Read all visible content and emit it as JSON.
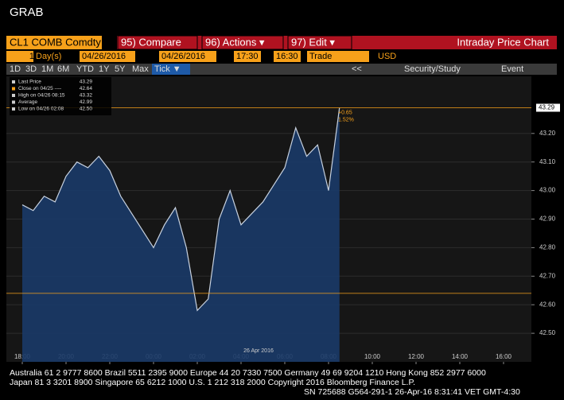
{
  "header": {
    "title": "GRAB"
  },
  "toolbar": {
    "security": "CL1 COMB Comdty",
    "buttons": [
      "95) Compare",
      "96) Actions ▾",
      "97) Edit ▾"
    ],
    "page_title": "Intraday Price Chart",
    "fields": [
      "1",
      "Day(s)",
      "04/26/2016",
      "04/26/2016",
      "17:30",
      "16:30",
      "Trade",
      "USD"
    ],
    "ranges": [
      "1D",
      "3D",
      "1M",
      "6M",
      "YTD",
      "1Y",
      "5Y",
      "Max",
      "Tick ▼"
    ],
    "right_items": [
      "<<",
      "Security/Study",
      "Event"
    ]
  },
  "chart_data": {
    "type": "area",
    "categories": [
      "18:00",
      null,
      null,
      null,
      "20:00",
      null,
      null,
      null,
      "22:00",
      null,
      null,
      null,
      "00:00",
      null,
      null,
      null,
      "02:00",
      null,
      null,
      null,
      "04:00",
      null,
      null,
      null,
      "06:00",
      null,
      null,
      null,
      "08:00",
      null,
      null,
      null,
      "10:00",
      null,
      null,
      null,
      "12:00",
      null,
      null,
      null,
      "14:00",
      null,
      null,
      null,
      "16:00",
      null,
      null
    ],
    "series": [
      {
        "name": "Last Price",
        "color": "#c8d2e0",
        "values": [
          42.95,
          42.93,
          42.98,
          42.96,
          43.05,
          43.1,
          43.08,
          43.12,
          43.07,
          42.98,
          42.92,
          42.86,
          42.8,
          42.88,
          42.94,
          42.8,
          42.58,
          42.62,
          42.9,
          43.0,
          42.88,
          42.92,
          42.96,
          43.02,
          43.08,
          43.22,
          43.12,
          43.16,
          43.0,
          43.29,
          null,
          null,
          null,
          null,
          null,
          null,
          null,
          null,
          null,
          null,
          null,
          null,
          null,
          null,
          null,
          null,
          null
        ]
      }
    ],
    "ylim": [
      42.4,
      43.4
    ],
    "yticks": [
      {
        "value": 42.5,
        "label": "42.50"
      },
      {
        "value": 42.6,
        "label": "42.60"
      },
      {
        "value": 42.7,
        "label": "42.70"
      },
      {
        "value": 42.8,
        "label": "42.80"
      },
      {
        "value": 42.9,
        "label": "42.90"
      },
      {
        "value": 43.0,
        "label": "43.00"
      },
      {
        "value": 43.1,
        "label": "43.10"
      },
      {
        "value": 43.2,
        "label": "43.20"
      }
    ],
    "grid": true,
    "reference_lines": [
      {
        "value": 43.29,
        "color": "#f7a11a"
      },
      {
        "value": 42.64,
        "color": "#f7a11a"
      }
    ],
    "last_value_tag": 43.29,
    "annotations": [
      "+0.65",
      "1.52%"
    ],
    "date_label": "26 Apr 2016",
    "legend_box": [
      {
        "label": "Last Price",
        "value": "43.29"
      },
      {
        "label": "Close on 04/25 ----",
        "value": "42.64"
      },
      {
        "label": "High on 04/26 08:15",
        "value": "43.32"
      },
      {
        "label": "Average",
        "value": "42.99"
      },
      {
        "label": "Low on 04/26 02:08",
        "value": "42.50"
      }
    ]
  },
  "footer": [
    "Australia 61 2 9777 8600 Brazil 5511 2395 9000 Europe 44 20 7330 7500 Germany 49 69 9204 1210 Hong Kong 852 2977 6000",
    "Japan 81 3 3201 8900          Singapore 65 6212 1000          U.S. 1 212 318 2000          Copyright 2016 Bloomberg Finance L.P.",
    "SN 725688 G564-291-1 26-Apr-16  8:31:41 VET  GMT-4:30"
  ]
}
